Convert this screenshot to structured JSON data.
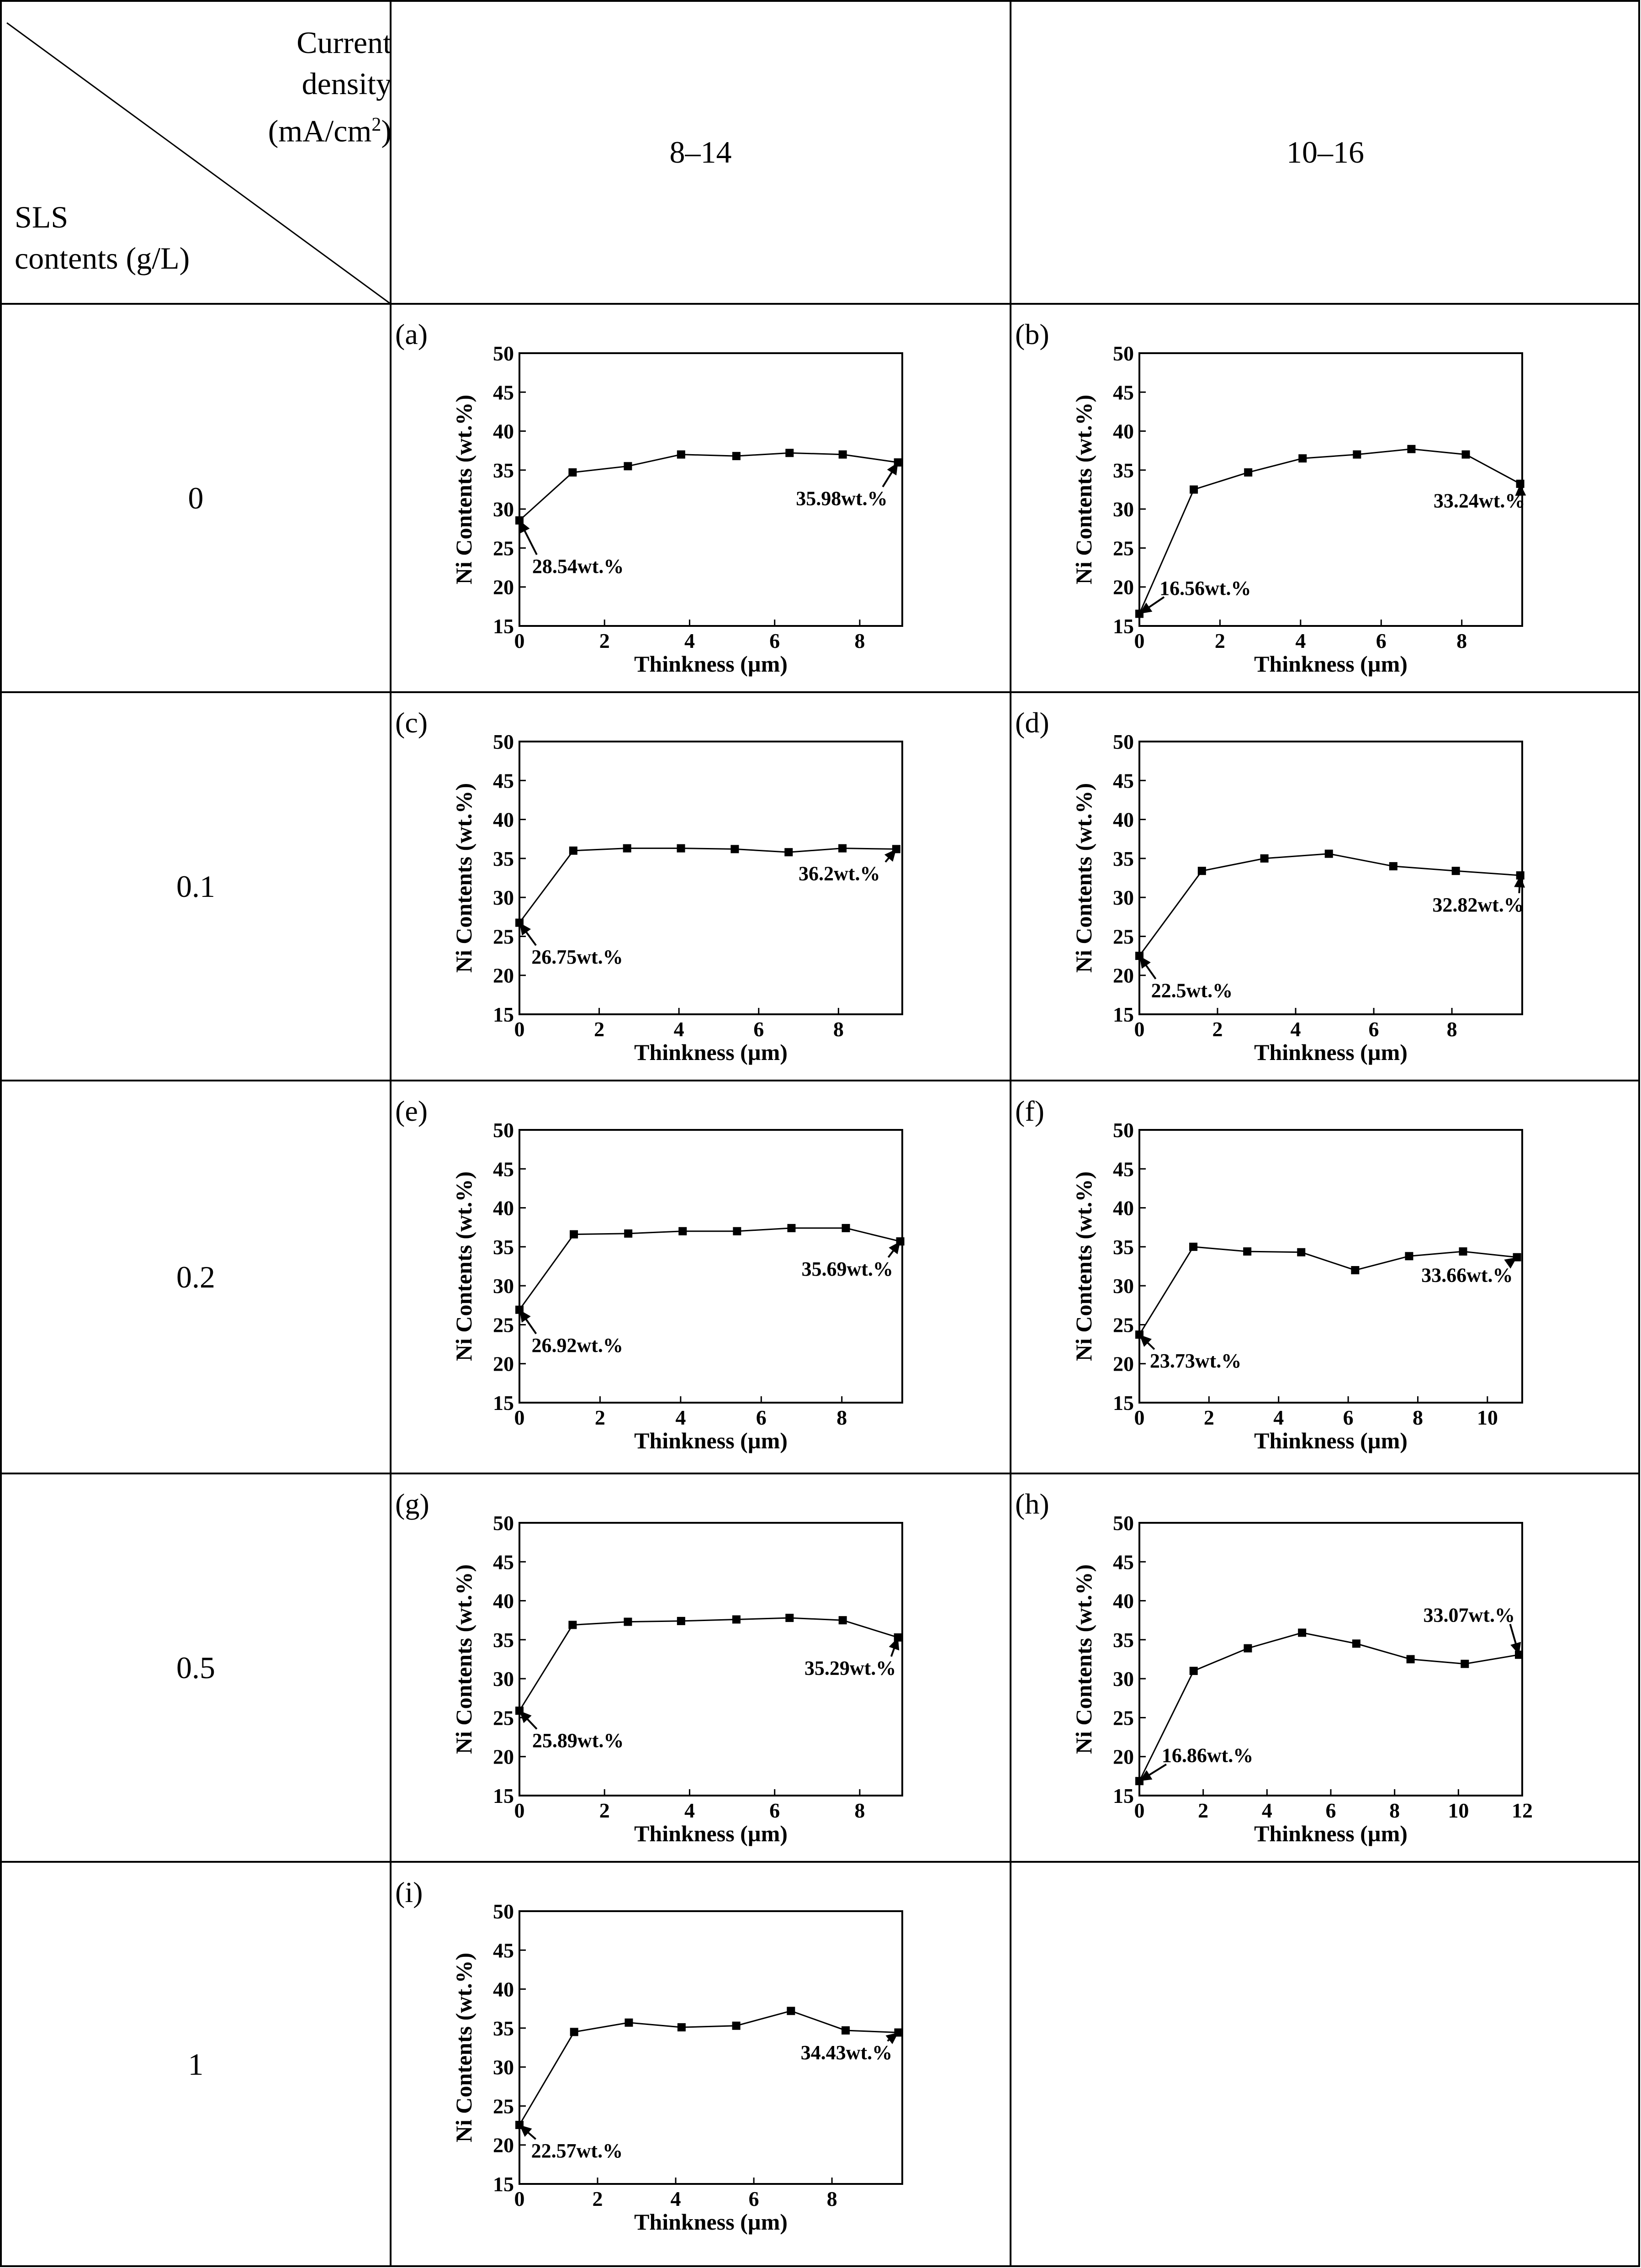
{
  "header": {
    "current_density_lines": [
      "Current",
      "density",
      "(mA/cm",
      "2",
      ")"
    ],
    "sls_lines": [
      "SLS",
      "contents (g/L)"
    ],
    "columns": [
      "8–14",
      "10–16"
    ]
  },
  "rows": [
    "0",
    "0.1",
    "0.2",
    "0.5",
    "1"
  ],
  "axes": {
    "xlabel": "Thinkness (µm)",
    "ylabel": "Ni Contents (wt.%)"
  },
  "chart_data": [
    {
      "type": "line",
      "panel": "(a)",
      "title": "(a)",
      "xlabel": "Thinkness (µm)",
      "ylabel": "Ni Contents (wt.%)",
      "xlim": [
        0,
        9
      ],
      "ylim": [
        15,
        50
      ],
      "xticks": [
        0,
        2,
        4,
        6,
        8
      ],
      "yticks": [
        15,
        20,
        25,
        30,
        35,
        40,
        45,
        50
      ],
      "x": [
        0,
        1.25,
        2.55,
        3.8,
        5.1,
        6.35,
        7.6,
        8.9
      ],
      "y": [
        28.54,
        34.7,
        35.5,
        37.0,
        36.8,
        37.2,
        37.0,
        35.98
      ],
      "annotations": [
        {
          "text": "28.54wt.%",
          "x": 0,
          "y": 28.54,
          "tx": 0.3,
          "ty": 21.8
        },
        {
          "text": "35.98wt.%",
          "x": 8.9,
          "y": 35.98,
          "tx": 6.5,
          "ty": 30.5
        }
      ]
    },
    {
      "type": "line",
      "panel": "(b)",
      "title": "(b)",
      "xlabel": "Thinkness (µm)",
      "ylabel": "Ni Contents (wt.%)",
      "xlim": [
        0,
        9.5
      ],
      "ylim": [
        15,
        50
      ],
      "xticks": [
        0,
        2,
        4,
        6,
        8
      ],
      "yticks": [
        15,
        20,
        25,
        30,
        35,
        40,
        45,
        50
      ],
      "x": [
        0,
        1.35,
        2.7,
        4.05,
        5.4,
        6.75,
        8.1,
        9.45
      ],
      "y": [
        16.56,
        32.5,
        34.7,
        36.5,
        37.0,
        37.7,
        37.0,
        33.24
      ],
      "annotations": [
        {
          "text": "16.56wt.%",
          "x": 0,
          "y": 16.56,
          "tx": 0.5,
          "ty": 19.0
        },
        {
          "text": "33.24wt.%",
          "x": 9.45,
          "y": 33.24,
          "tx": 7.3,
          "ty": 30.2
        }
      ]
    },
    {
      "type": "line",
      "panel": "(c)",
      "title": "(c)",
      "xlabel": "Thinkness (µm)",
      "ylabel": "Ni Contents (wt.%)",
      "xlim": [
        0,
        9.6
      ],
      "ylim": [
        15,
        50
      ],
      "xticks": [
        0,
        2,
        4,
        6,
        8
      ],
      "yticks": [
        15,
        20,
        25,
        30,
        35,
        40,
        45,
        50
      ],
      "x": [
        0,
        1.35,
        2.7,
        4.05,
        5.4,
        6.75,
        8.1,
        9.45
      ],
      "y": [
        26.75,
        36.0,
        36.3,
        36.3,
        36.2,
        35.8,
        36.3,
        36.2
      ],
      "annotations": [
        {
          "text": "26.75wt.%",
          "x": 0,
          "y": 26.75,
          "tx": 0.3,
          "ty": 21.5
        },
        {
          "text": "36.2wt.%",
          "x": 9.45,
          "y": 36.2,
          "tx": 7.0,
          "ty": 32.2
        }
      ]
    },
    {
      "type": "line",
      "panel": "(d)",
      "title": "(d)",
      "xlabel": "Thinkness (µm)",
      "ylabel": "Ni Contents (wt.%)",
      "xlim": [
        0,
        9.8
      ],
      "ylim": [
        15,
        50
      ],
      "xticks": [
        0,
        2,
        4,
        6,
        8
      ],
      "yticks": [
        15,
        20,
        25,
        30,
        35,
        40,
        45,
        50
      ],
      "x": [
        0,
        1.6,
        3.2,
        4.85,
        6.5,
        8.1,
        9.75
      ],
      "y": [
        22.5,
        33.4,
        35.0,
        35.6,
        34.0,
        33.4,
        32.82
      ],
      "annotations": [
        {
          "text": "22.5wt.%",
          "x": 0,
          "y": 22.5,
          "tx": 0.3,
          "ty": 17.2
        },
        {
          "text": "32.82wt.%",
          "x": 9.75,
          "y": 32.82,
          "tx": 7.5,
          "ty": 28.2
        }
      ]
    },
    {
      "type": "line",
      "panel": "(e)",
      "title": "(e)",
      "xlabel": "Thinkness (µm)",
      "ylabel": "Ni Contents (wt.%)",
      "xlim": [
        0,
        9.5
      ],
      "ylim": [
        15,
        50
      ],
      "xticks": [
        0,
        2,
        4,
        6,
        8
      ],
      "yticks": [
        15,
        20,
        25,
        30,
        35,
        40,
        45,
        50
      ],
      "x": [
        0,
        1.35,
        2.7,
        4.05,
        5.4,
        6.75,
        8.1,
        9.45
      ],
      "y": [
        26.92,
        36.6,
        36.7,
        37.0,
        37.0,
        37.4,
        37.4,
        35.69
      ],
      "annotations": [
        {
          "text": "26.92wt.%",
          "x": 0,
          "y": 26.92,
          "tx": 0.3,
          "ty": 21.5
        },
        {
          "text": "35.69wt.%",
          "x": 9.45,
          "y": 35.69,
          "tx": 7.0,
          "ty": 31.3
        }
      ]
    },
    {
      "type": "line",
      "panel": "(f)",
      "title": "(f)",
      "xlabel": "Thinkness (µm)",
      "ylabel": "Ni Contents (wt.%)",
      "xlim": [
        0,
        11
      ],
      "ylim": [
        15,
        50
      ],
      "xticks": [
        0,
        2,
        4,
        6,
        8,
        10
      ],
      "yticks": [
        15,
        20,
        25,
        30,
        35,
        40,
        45,
        50
      ],
      "x": [
        0,
        1.55,
        3.1,
        4.65,
        6.2,
        7.75,
        9.3,
        10.85
      ],
      "y": [
        23.73,
        35.0,
        34.4,
        34.3,
        32.0,
        33.8,
        34.4,
        33.66
      ],
      "annotations": [
        {
          "text": "23.73wt.%",
          "x": 0,
          "y": 23.73,
          "tx": 0.3,
          "ty": 19.5
        },
        {
          "text": "33.66wt.%",
          "x": 10.85,
          "y": 33.66,
          "tx": 8.1,
          "ty": 30.5
        }
      ]
    },
    {
      "type": "line",
      "panel": "(g)",
      "title": "(g)",
      "xlabel": "Thinkness (µm)",
      "ylabel": "Ni Contents (wt.%)",
      "xlim": [
        0,
        9
      ],
      "ylim": [
        15,
        50
      ],
      "xticks": [
        0,
        2,
        4,
        6,
        8
      ],
      "yticks": [
        15,
        20,
        25,
        30,
        35,
        40,
        45,
        50
      ],
      "x": [
        0,
        1.25,
        2.55,
        3.8,
        5.1,
        6.35,
        7.6,
        8.9
      ],
      "y": [
        25.89,
        36.9,
        37.3,
        37.4,
        37.6,
        37.8,
        37.5,
        35.29
      ],
      "annotations": [
        {
          "text": "25.89wt.%",
          "x": 0,
          "y": 25.89,
          "tx": 0.3,
          "ty": 21.2
        },
        {
          "text": "35.29wt.%",
          "x": 8.9,
          "y": 35.29,
          "tx": 6.7,
          "ty": 30.5
        }
      ]
    },
    {
      "type": "line",
      "panel": "(h)",
      "title": "(h)",
      "xlabel": "Thinkness (µm)",
      "ylabel": "Ni Contents (wt.%)",
      "xlim": [
        0,
        12
      ],
      "ylim": [
        15,
        50
      ],
      "xticks": [
        0,
        2,
        4,
        6,
        8,
        10,
        12
      ],
      "yticks": [
        15,
        20,
        25,
        30,
        35,
        40,
        45,
        50
      ],
      "x": [
        0,
        1.7,
        3.4,
        5.1,
        6.8,
        8.5,
        10.2,
        11.9
      ],
      "y": [
        16.86,
        31.0,
        33.9,
        35.9,
        34.5,
        32.5,
        31.9,
        33.07
      ],
      "annotations": [
        {
          "text": "16.86wt.%",
          "x": 0,
          "y": 16.86,
          "tx": 0.7,
          "ty": 19.3
        },
        {
          "text": "33.07wt.%",
          "x": 11.9,
          "y": 33.07,
          "tx": 8.9,
          "ty": 37.3
        }
      ]
    },
    {
      "type": "line",
      "panel": "(i)",
      "title": "(i)",
      "xlabel": "Thinkness (µm)",
      "ylabel": "Ni Contents (wt.%)",
      "xlim": [
        0,
        9.8
      ],
      "ylim": [
        15,
        50
      ],
      "xticks": [
        0,
        2,
        4,
        6,
        8
      ],
      "yticks": [
        15,
        20,
        25,
        30,
        35,
        40,
        45,
        50
      ],
      "x": [
        0,
        1.4,
        2.8,
        4.15,
        5.55,
        6.95,
        8.35,
        9.7
      ],
      "y": [
        22.57,
        34.5,
        35.7,
        35.1,
        35.3,
        37.2,
        34.7,
        34.43
      ],
      "annotations": [
        {
          "text": "22.57wt.%",
          "x": 0,
          "y": 22.57,
          "tx": 0.3,
          "ty": 18.4
        },
        {
          "text": "34.43wt.%",
          "x": 9.7,
          "y": 34.43,
          "tx": 7.2,
          "ty": 31.0
        }
      ]
    }
  ]
}
